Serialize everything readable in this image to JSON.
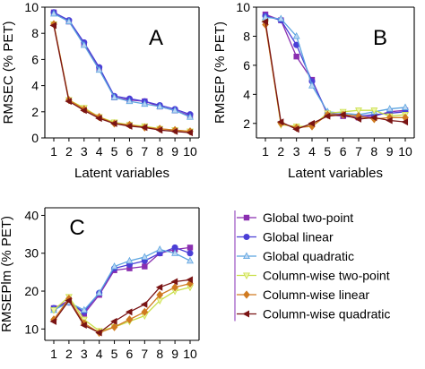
{
  "chart_data": [
    {
      "type": "line",
      "panel_label": "A",
      "ylabel": "RMSEC (% PET)",
      "xlabel": "Latent variables",
      "x": [
        1,
        2,
        3,
        4,
        5,
        6,
        7,
        8,
        9,
        10
      ],
      "ylim": [
        0,
        10
      ],
      "yticks": [
        0,
        2,
        4,
        6,
        8,
        10
      ],
      "series": [
        {
          "name": "Global two-point",
          "values": [
            9.6,
            8.9,
            7.2,
            5.3,
            3.1,
            2.9,
            2.8,
            2.4,
            2.1,
            1.7
          ]
        },
        {
          "name": "Global linear",
          "values": [
            9.6,
            9.0,
            7.3,
            5.4,
            3.2,
            3.0,
            2.8,
            2.5,
            2.2,
            1.8
          ]
        },
        {
          "name": "Global quadratic",
          "values": [
            9.5,
            8.9,
            7.1,
            5.2,
            3.1,
            2.8,
            2.6,
            2.4,
            2.1,
            1.6
          ]
        },
        {
          "name": "Column-wise two-point",
          "values": [
            8.7,
            2.9,
            2.3,
            1.6,
            1.2,
            1.0,
            0.9,
            0.7,
            0.6,
            0.5
          ]
        },
        {
          "name": "Column-wise linear",
          "values": [
            8.7,
            2.9,
            2.2,
            1.6,
            1.1,
            1.0,
            0.8,
            0.7,
            0.6,
            0.5
          ]
        },
        {
          "name": "Column-wise quadratic",
          "values": [
            8.6,
            2.8,
            2.1,
            1.5,
            1.1,
            0.9,
            0.8,
            0.6,
            0.5,
            0.4
          ]
        }
      ]
    },
    {
      "type": "line",
      "panel_label": "B",
      "ylabel": "RMSEP (% PET)",
      "xlabel": "Latent variables",
      "x": [
        1,
        2,
        3,
        4,
        5,
        6,
        7,
        8,
        9,
        10
      ],
      "ylim": [
        1,
        10
      ],
      "yticks": [
        2,
        4,
        6,
        8,
        10
      ],
      "series": [
        {
          "name": "Global two-point",
          "values": [
            9.5,
            9.1,
            6.6,
            5.0,
            2.6,
            2.5,
            2.4,
            2.5,
            2.8,
            2.9
          ]
        },
        {
          "name": "Global linear",
          "values": [
            9.4,
            9.1,
            7.4,
            4.9,
            2.7,
            2.6,
            2.5,
            2.6,
            2.7,
            2.8
          ]
        },
        {
          "name": "Global quadratic",
          "values": [
            9.3,
            9.2,
            8.0,
            4.6,
            2.8,
            2.7,
            2.6,
            2.8,
            3.0,
            3.1
          ]
        },
        {
          "name": "Column-wise two-point",
          "values": [
            8.9,
            1.9,
            1.8,
            1.8,
            2.7,
            2.8,
            2.9,
            2.9,
            2.5,
            2.6
          ]
        },
        {
          "name": "Column-wise linear",
          "values": [
            8.8,
            2.0,
            1.7,
            1.8,
            2.6,
            2.6,
            2.5,
            2.3,
            2.4,
            2.4
          ]
        },
        {
          "name": "Column-wise quadratic",
          "values": [
            9.0,
            2.1,
            1.6,
            2.0,
            2.5,
            2.6,
            2.3,
            2.4,
            2.2,
            2.1
          ]
        }
      ]
    },
    {
      "type": "line",
      "panel_label": "C",
      "ylabel": "RMSEPlm (% PET)",
      "xlabel": "Latent variables",
      "x": [
        1,
        2,
        3,
        4,
        5,
        6,
        7,
        8,
        9,
        10
      ],
      "ylim": [
        7,
        42
      ],
      "yticks": [
        10,
        20,
        30,
        40
      ],
      "series": [
        {
          "name": "Global two-point",
          "values": [
            15.5,
            17.5,
            14.0,
            19.0,
            25.5,
            26.0,
            26.5,
            30.0,
            31.0,
            31.5
          ]
        },
        {
          "name": "Global linear",
          "values": [
            15.5,
            17.0,
            14.5,
            19.5,
            26.0,
            27.0,
            28.0,
            30.0,
            31.5,
            30.0
          ]
        },
        {
          "name": "Global quadratic",
          "values": [
            15.0,
            17.0,
            15.0,
            19.5,
            26.5,
            28.0,
            29.0,
            31.0,
            30.0,
            28.0
          ]
        },
        {
          "name": "Column-wise two-point",
          "values": [
            15.0,
            18.5,
            12.5,
            9.5,
            10.5,
            12.0,
            13.5,
            17.5,
            20.0,
            21.0
          ]
        },
        {
          "name": "Column-wise linear",
          "values": [
            12.5,
            18.0,
            11.5,
            9.0,
            10.5,
            12.5,
            14.5,
            19.0,
            21.0,
            22.0
          ]
        },
        {
          "name": "Column-wise quadratic",
          "values": [
            12.0,
            17.5,
            11.0,
            9.0,
            12.0,
            14.5,
            16.5,
            21.0,
            22.5,
            23.0
          ]
        }
      ]
    }
  ],
  "legend": {
    "items": [
      {
        "name": "Global two-point",
        "color": "#8a2fb0",
        "marker": "square"
      },
      {
        "name": "Global linear",
        "color": "#4b3fd6",
        "marker": "circle"
      },
      {
        "name": "Global quadratic",
        "color": "#5ba4e0",
        "marker": "triangle-up"
      },
      {
        "name": "Column-wise two-point",
        "color": "#c9df4a",
        "marker": "triangle-down"
      },
      {
        "name": "Column-wise linear",
        "color": "#d07a20",
        "marker": "diamond"
      },
      {
        "name": "Column-wise quadratic",
        "color": "#7a1414",
        "marker": "triangle-left"
      }
    ]
  }
}
